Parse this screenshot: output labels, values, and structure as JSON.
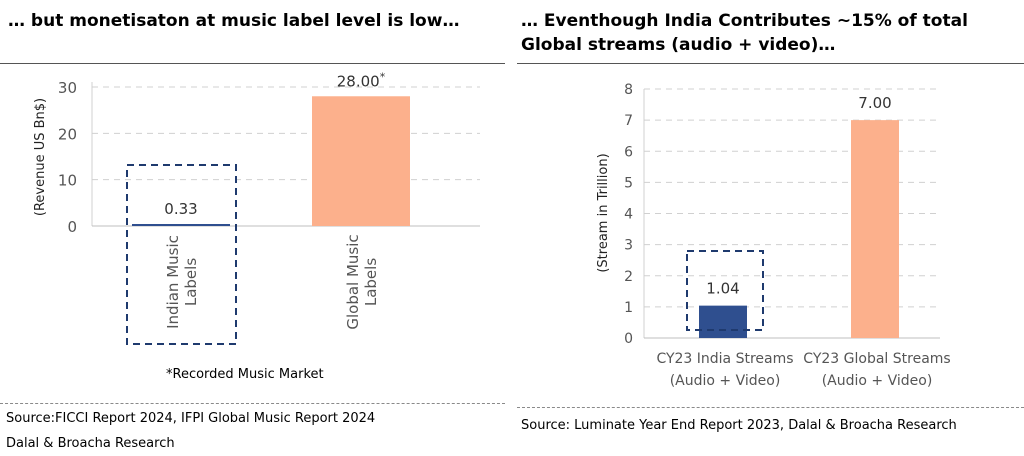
{
  "colors": {
    "india_bar": "#2f4f8f",
    "global_bar": "#fcb08c",
    "grid": "#d0d0d0",
    "axis_text": "#555555",
    "dash_box": "#1f3a6e"
  },
  "left": {
    "heading": "… but monetisaton at music label level is low…",
    "footnote": "*Recorded Music Market",
    "source_line1": "Source:FICCI Report 2024, IFPI Global Music Report 2024",
    "source_line2": "Dalal & Broacha Research"
  },
  "right": {
    "heading_line1": "… Eventhough India Contributes ~15% of total",
    "heading_line2": "Global streams (audio + video)…",
    "source_line1": "Source: Luminate Year End Report 2023, Dalal & Broacha Research"
  },
  "chart_data": [
    {
      "type": "bar",
      "categories": [
        "Indian Music Labels",
        "Global Music Labels"
      ],
      "values": [
        0.33,
        28.0
      ],
      "data_labels": [
        "0.33",
        "28.00"
      ],
      "data_label_suffix": [
        "",
        "*"
      ],
      "ylabel": "(Revenue US Bn$)",
      "ylim": [
        0,
        30
      ],
      "yticks": [
        0,
        10,
        20,
        30
      ],
      "tick_labels_rotated": true,
      "grid": true,
      "highlight_box_category": "Indian Music Labels"
    },
    {
      "type": "bar",
      "categories": [
        "CY23 India Streams\n(Audio + Video)",
        "CY23 Global Streams\n(Audio + Video)"
      ],
      "category_lines": [
        [
          "CY23 India Streams",
          "(Audio + Video)"
        ],
        [
          "CY23 Global Streams",
          "(Audio + Video)"
        ]
      ],
      "values": [
        1.04,
        7.0
      ],
      "data_labels": [
        "1.04",
        "7.00"
      ],
      "ylabel": "(Stream in Trillion)",
      "ylim": [
        0,
        8
      ],
      "yticks": [
        0,
        1,
        2,
        3,
        4,
        5,
        6,
        7,
        8
      ],
      "grid": true,
      "highlight_box_category": "CY23 India Streams\n(Audio + Video)"
    }
  ]
}
